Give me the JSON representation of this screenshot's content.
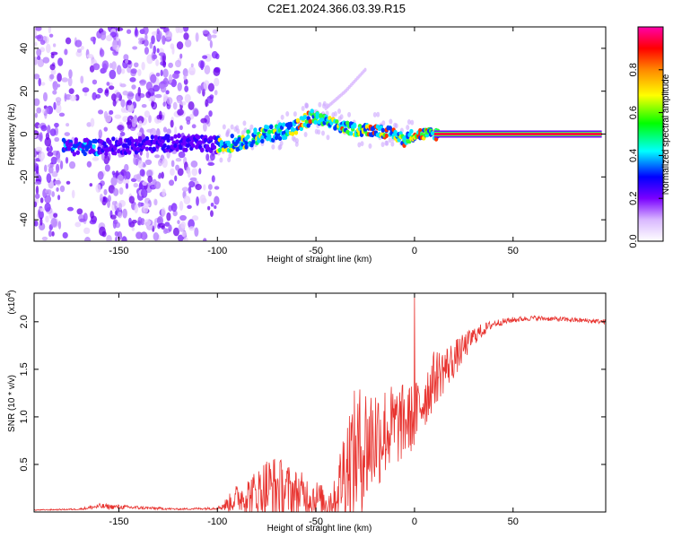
{
  "figure_title": "C2E1.2024.366.03.39.R15",
  "chart_data": [
    {
      "type": "heatmap",
      "xlabel": "Height of straight line (km)",
      "ylabel": "Frequency (Hz)",
      "xlim": [
        -193,
        97
      ],
      "ylim": [
        -50,
        50
      ],
      "x_ticks": [
        -150,
        -100,
        -50,
        0,
        50
      ],
      "y_ticks": [
        -40,
        -20,
        0,
        20,
        40
      ],
      "colorbar": {
        "label": "Normalized spectral amplitude",
        "range": [
          0,
          1
        ],
        "ticks": [
          "0.0",
          "0.2",
          "0.4",
          "0.6",
          "0.8"
        ],
        "colors": [
          "#ffffff",
          "#7a00ff",
          "#0000ff",
          "#00ffff",
          "#00ff00",
          "#ffff00",
          "#ff8800",
          "#ff0000",
          "#ff00aa"
        ]
      },
      "ridge": {
        "description_points_x": [
          -175,
          -160,
          -140,
          -120,
          -100,
          -90,
          -80,
          -70,
          -60,
          -52,
          -45,
          -40,
          -30,
          -20,
          -10,
          -5,
          0,
          5,
          10,
          20,
          50,
          95
        ],
        "freq_hz": [
          -6,
          -6,
          -5,
          -4,
          -5,
          -4,
          -1,
          1,
          3,
          8,
          6,
          4,
          2,
          2,
          0,
          -3,
          0,
          0,
          0,
          0,
          0,
          0
        ]
      },
      "branch": {
        "x": [
          -45,
          -35,
          -25
        ],
        "freq_hz": [
          12,
          20,
          30
        ]
      }
    },
    {
      "type": "line",
      "xlabel": "Height of straight line (km)",
      "ylabel": "SNR (10 * v/v)",
      "y_multiplier": "(x10^4)",
      "y_multiplier_base": "(x10",
      "y_multiplier_exp": "4",
      "xlim": [
        -193,
        97
      ],
      "ylim": [
        0,
        23000
      ],
      "x_ticks": [
        -150,
        -100,
        -50,
        0,
        50
      ],
      "y_ticks": [
        5000,
        10000,
        15000,
        20000
      ],
      "y_tick_labels": [
        "0.5",
        "1.0",
        "1.5",
        "2.0"
      ],
      "color": "#e8332f",
      "envelope": {
        "x": [
          -193,
          -170,
          -160,
          -120,
          -100,
          -95,
          -90,
          -80,
          -75,
          -70,
          -60,
          -50,
          -45,
          -40,
          -35,
          -30,
          -25,
          -20,
          -15,
          -10,
          -5,
          0,
          5,
          10,
          20,
          30,
          40,
          50,
          60,
          70,
          80,
          97
        ],
        "base": [
          200,
          300,
          600,
          300,
          400,
          800,
          1500,
          2000,
          2500,
          2500,
          2000,
          1500,
          1000,
          1500,
          5000,
          6000,
          7000,
          8000,
          8500,
          9000,
          9500,
          10000,
          12000,
          14000,
          16000,
          18500,
          19800,
          20200,
          20400,
          20300,
          20200,
          20000
        ],
        "amp": [
          50,
          80,
          300,
          80,
          150,
          800,
          1500,
          2500,
          3500,
          3500,
          2500,
          2000,
          1500,
          2000,
          6000,
          7000,
          7000,
          6000,
          5000,
          4500,
          4000,
          3500,
          3500,
          3000,
          2000,
          1000,
          400,
          300,
          250,
          250,
          250,
          250
        ]
      },
      "spike": {
        "x": 0,
        "y": 22800
      }
    }
  ]
}
